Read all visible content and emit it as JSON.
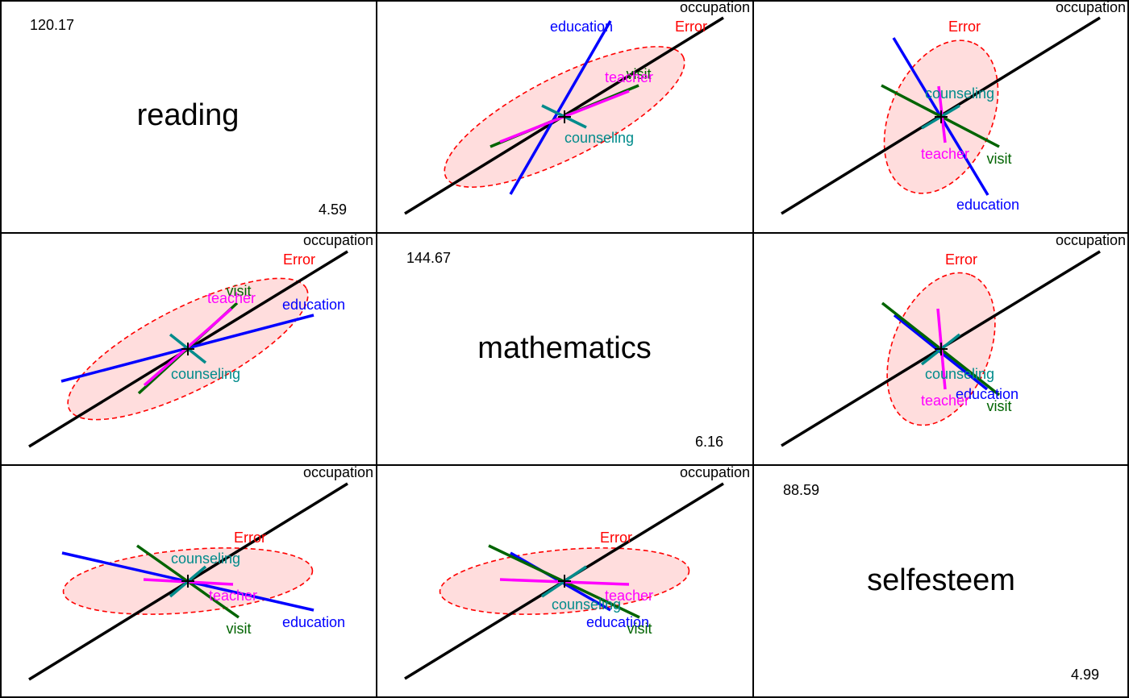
{
  "chart_data": {
    "type": "hypothesis-error-pairs-plot",
    "variables": [
      "reading",
      "mathematics",
      "selfesteem"
    ],
    "diagonal": [
      {
        "variable": "reading",
        "max": "120.17",
        "min": "4.59"
      },
      {
        "variable": "mathematics",
        "max": "144.67",
        "min": "6.16"
      },
      {
        "variable": "selfesteem",
        "max": "88.59",
        "min": "4.99"
      }
    ],
    "error_label": "Error",
    "corner_label": "occupation",
    "terms": [
      "education",
      "visit",
      "teacher",
      "counseling"
    ],
    "colors": {
      "error": "#ff0000",
      "error_fill": "#ffdddd",
      "occupation": "#000000",
      "education": "#0000ff",
      "visit": "#006400",
      "teacher": "#ff00ff",
      "counseling": "#008b8b"
    }
  }
}
